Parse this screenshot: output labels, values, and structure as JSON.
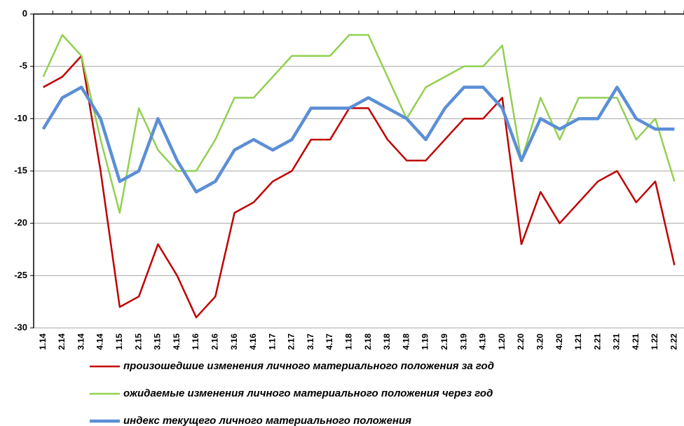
{
  "chart_data": {
    "type": "line",
    "categories": [
      "1.14",
      "2.14",
      "3.14",
      "4.14",
      "1.15",
      "2.15",
      "3.15",
      "4.15",
      "1.16",
      "2.16",
      "3.16",
      "4.16",
      "1.17",
      "2.17",
      "3.17",
      "4.17",
      "1.18",
      "2.18",
      "3.18",
      "4.18",
      "1.19",
      "2.19",
      "3.19",
      "4.19",
      "1.20",
      "2.20",
      "3.20",
      "4.20",
      "1.21",
      "2.21",
      "3.21",
      "4.21",
      "1.22",
      "2.22"
    ],
    "series": [
      {
        "name": "произошедшие  изменения личного материального положения за год",
        "color": "#c00000",
        "width": 2.5,
        "values": [
          -7,
          -6,
          -4,
          -15,
          -28,
          -27,
          -22,
          -25,
          -29,
          -27,
          -19,
          -18,
          -16,
          -15,
          -12,
          -12,
          -9,
          -9,
          -12,
          -14,
          -14,
          -12,
          -10,
          -10,
          -8,
          -22,
          -17,
          -20,
          -18,
          -16,
          -15,
          -18,
          -16,
          -24
        ]
      },
      {
        "name": "ожидаемые изменения личного материального положения через год",
        "color": "#92d050",
        "width": 2.5,
        "values": [
          -6,
          -2,
          -4,
          -12,
          -19,
          -9,
          -13,
          -15,
          -15,
          -12,
          -8,
          -8,
          -6,
          -4,
          -4,
          -4,
          -2,
          -2,
          -6,
          -10,
          -7,
          -6,
          -5,
          -5,
          -3,
          -14,
          -8,
          -12,
          -8,
          -8,
          -8,
          -12,
          -10,
          -16
        ]
      },
      {
        "name": "индекс текущего личного материального положения",
        "color": "#5b8fd6",
        "width": 4.5,
        "values": [
          -11,
          -8,
          -7,
          -10,
          -16,
          -15,
          -10,
          -14,
          -17,
          -16,
          -13,
          -12,
          -13,
          -12,
          -9,
          -9,
          -9,
          -8,
          -9,
          -10,
          -12,
          -9,
          -7,
          -7,
          -9,
          -14,
          -10,
          -11,
          -10,
          -10,
          -7,
          -10,
          -11,
          -11
        ]
      }
    ],
    "ylim": [
      -30,
      0
    ],
    "yticks": [
      0,
      -5,
      -10,
      -15,
      -20,
      -25,
      -30
    ],
    "grid": true
  }
}
